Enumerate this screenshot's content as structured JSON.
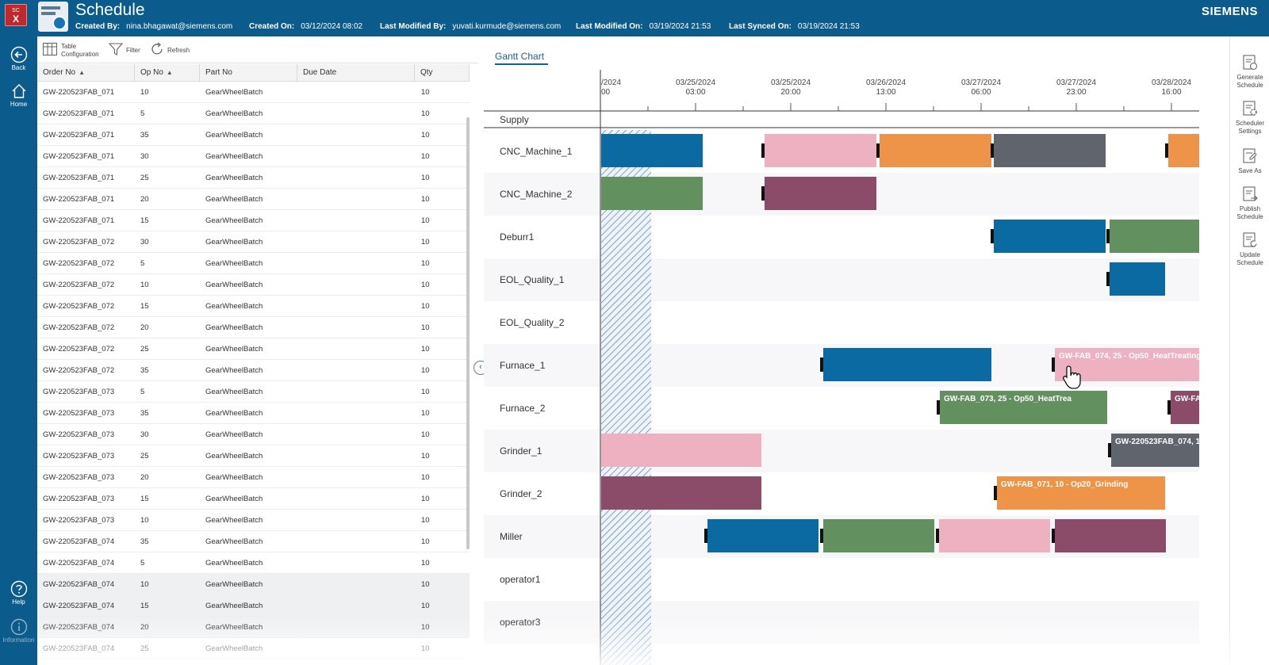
{
  "header": {
    "logo_small": "SC",
    "logo_big": "X",
    "title": "Schedule",
    "meta": [
      {
        "key": "Created By:",
        "value": "nina.bhagawat@siemens.com"
      },
      {
        "key": "Created On:",
        "value": "03/12/2024 08:02"
      },
      {
        "key": "Last Modified By:",
        "value": "yuvati.kurmude@siemens.com"
      },
      {
        "key": "Last Modified On:",
        "value": "03/19/2024 21:53"
      },
      {
        "key": "Last Synced On:",
        "value": "03/19/2024 21:53"
      }
    ],
    "brand": "SIEMENS"
  },
  "nav": {
    "back": "Back",
    "home": "Home",
    "help": "Help",
    "information": "Information"
  },
  "toolbar": {
    "table_config_line1": "Table",
    "table_config_line2": "Configuration",
    "filter": "Filter",
    "refresh": "Refresh"
  },
  "table": {
    "columns": [
      "Order No",
      "Op No",
      "Part No",
      "Due Date",
      "Qty"
    ],
    "rows": [
      [
        "GW-220523FAB_071",
        "10",
        "GearWheelBatch",
        "",
        "10"
      ],
      [
        "GW-220523FAB_071",
        "5",
        "GearWheelBatch",
        "",
        "10"
      ],
      [
        "GW-220523FAB_071",
        "35",
        "GearWheelBatch",
        "",
        "10"
      ],
      [
        "GW-220523FAB_071",
        "30",
        "GearWheelBatch",
        "",
        "10"
      ],
      [
        "GW-220523FAB_071",
        "25",
        "GearWheelBatch",
        "",
        "10"
      ],
      [
        "GW-220523FAB_071",
        "20",
        "GearWheelBatch",
        "",
        "10"
      ],
      [
        "GW-220523FAB_071",
        "15",
        "GearWheelBatch",
        "",
        "10"
      ],
      [
        "GW-220523FAB_072",
        "30",
        "GearWheelBatch",
        "",
        "10"
      ],
      [
        "GW-220523FAB_072",
        "5",
        "GearWheelBatch",
        "",
        "10"
      ],
      [
        "GW-220523FAB_072",
        "10",
        "GearWheelBatch",
        "",
        "10"
      ],
      [
        "GW-220523FAB_072",
        "15",
        "GearWheelBatch",
        "",
        "10"
      ],
      [
        "GW-220523FAB_072",
        "20",
        "GearWheelBatch",
        "",
        "10"
      ],
      [
        "GW-220523FAB_072",
        "25",
        "GearWheelBatch",
        "",
        "10"
      ],
      [
        "GW-220523FAB_072",
        "35",
        "GearWheelBatch",
        "",
        "10"
      ],
      [
        "GW-220523FAB_073",
        "5",
        "GearWheelBatch",
        "",
        "10"
      ],
      [
        "GW-220523FAB_073",
        "35",
        "GearWheelBatch",
        "",
        "10"
      ],
      [
        "GW-220523FAB_073",
        "30",
        "GearWheelBatch",
        "",
        "10"
      ],
      [
        "GW-220523FAB_073",
        "25",
        "GearWheelBatch",
        "",
        "10"
      ],
      [
        "GW-220523FAB_073",
        "20",
        "GearWheelBatch",
        "",
        "10"
      ],
      [
        "GW-220523FAB_073",
        "15",
        "GearWheelBatch",
        "",
        "10"
      ],
      [
        "GW-220523FAB_073",
        "10",
        "GearWheelBatch",
        "",
        "10"
      ],
      [
        "GW-220523FAB_074",
        "35",
        "GearWheelBatch",
        "",
        "10"
      ],
      [
        "GW-220523FAB_074",
        "5",
        "GearWheelBatch",
        "",
        "10"
      ],
      [
        "GW-220523FAB_074",
        "10",
        "GearWheelBatch",
        "",
        "10"
      ],
      [
        "GW-220523FAB_074",
        "15",
        "GearWheelBatch",
        "",
        "10"
      ],
      [
        "GW-220523FAB_074",
        "20",
        "GearWheelBatch",
        "",
        "10"
      ],
      [
        "GW-220523FAB_074",
        "25",
        "GearWheelBatch",
        "",
        "10"
      ]
    ],
    "selected_rows": [
      23,
      24,
      25
    ]
  },
  "gantt": {
    "tab_label": "Gantt Chart",
    "supply_label": "Supply",
    "ticks": [
      {
        "date": "/2024",
        "time": "00"
      },
      {
        "date": "03/25/2024",
        "time": "03:00"
      },
      {
        "date": "03/25/2024",
        "time": "20:00"
      },
      {
        "date": "03/26/2024",
        "time": "13:00"
      },
      {
        "date": "03/27/2024",
        "time": "06:00"
      },
      {
        "date": "03/27/2024",
        "time": "23:00"
      },
      {
        "date": "03/28/2024",
        "time": "16:00"
      }
    ],
    "resources": [
      "CNC_Machine_1",
      "CNC_Machine_2",
      "Deburr1",
      "EOL_Quality_1",
      "EOL_Quality_2",
      "Furnace_1",
      "Furnace_2",
      "Grinder_1",
      "Grinder_2",
      "Miller",
      "operator1",
      "operator3"
    ],
    "colors": {
      "blue": "#0b6aa2",
      "pink": "#eeb1c1",
      "orange": "#ee9448",
      "gray": "#5f646d",
      "green": "#63905f",
      "plum": "#8a4c68",
      "hatch": "#5b86ad"
    },
    "bar_labels": {
      "furnace1_pink": "GW-FAB_074, 25 - Op50_HeatTreating",
      "furnace2_green": "GW-FAB_073, 25 - Op50_HeatTrea",
      "furnace2_plum": "GW-FA",
      "grinder1_gray": "GW-220523FAB_074, 1",
      "grinder2_orange": "GW-FAB_071, 10 - Op20_Grinding"
    }
  },
  "rightbar": {
    "generate_line1": "Generate",
    "generate_line2": "Schedule",
    "settings_line1": "Scheduler",
    "settings_line2": "Settings",
    "saveas": "Save As",
    "publish_line1": "Publish",
    "publish_line2": "Schedule",
    "update_line1": "Update",
    "update_line2": "Schedule"
  }
}
